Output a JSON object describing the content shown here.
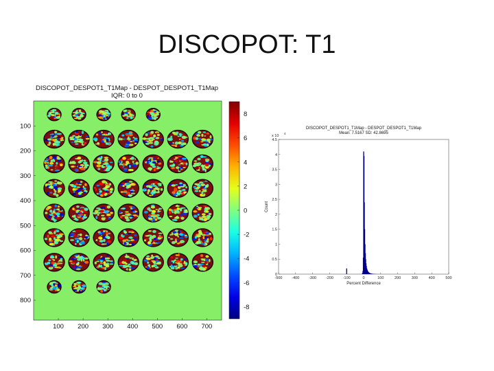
{
  "slide": {
    "title": "DISCOPOT: T1"
  },
  "chart_data": [
    {
      "type": "heatmap",
      "title": "DISCOPOT_DESPOT1_T1Map - DESPOT_DESPOT1_T1Map",
      "subtitle": "IQR: 0 to 0",
      "xlabel": "",
      "ylabel": "",
      "x_ticks": [
        "100",
        "200",
        "300",
        "400",
        "500",
        "600",
        "700"
      ],
      "y_ticks": [
        "100",
        "200",
        "300",
        "400",
        "500",
        "600",
        "700",
        "800"
      ],
      "xlim": [
        0,
        760
      ],
      "ylim": [
        880,
        0
      ],
      "colorbar": {
        "ticks": [
          "8",
          "6",
          "4",
          "2",
          "0",
          "-2",
          "-4",
          "-6",
          "-8"
        ],
        "range": [
          -9,
          9
        ],
        "colormap": "jet"
      },
      "background_color": "#87ee68",
      "montage": {
        "rows": 8,
        "cols": 7,
        "slice_counts_per_row": [
          5,
          7,
          7,
          7,
          7,
          7,
          7,
          3
        ]
      }
    },
    {
      "type": "bar",
      "title": "DISCOPOT_DESPOT1_T1Map - DESPOT_DESPOT1_T1Map",
      "subtitle": "Mean: 7.5167 SD: 42.8695",
      "xlabel": "Percent Difference",
      "ylabel": "Count",
      "y_multiplier": "x 10",
      "y_multiplier_exp": "4",
      "xlim": [
        -500,
        500
      ],
      "ylim": [
        0,
        45000
      ],
      "x_ticks": [
        "-500",
        "-400",
        "-300",
        "-200",
        "-100",
        "0",
        "100",
        "200",
        "300",
        "400",
        "500"
      ],
      "y_ticks": [
        "0",
        "0.5",
        "1",
        "1.5",
        "2",
        "2.5",
        "3",
        "3.5",
        "4",
        "4.5"
      ],
      "bar_color": "#00008b",
      "bins": [
        {
          "x": -100,
          "count": 1900
        },
        {
          "x": -8,
          "count": 150
        },
        {
          "x": -6,
          "count": 450
        },
        {
          "x": -4,
          "count": 1100
        },
        {
          "x": -2,
          "count": 5500
        },
        {
          "x": 0,
          "count": 41000
        },
        {
          "x": 2,
          "count": 39500
        },
        {
          "x": 4,
          "count": 24000
        },
        {
          "x": 6,
          "count": 15000
        },
        {
          "x": 8,
          "count": 10000
        },
        {
          "x": 10,
          "count": 7000
        },
        {
          "x": 12,
          "count": 5000
        },
        {
          "x": 14,
          "count": 3600
        },
        {
          "x": 16,
          "count": 2700
        },
        {
          "x": 18,
          "count": 2000
        },
        {
          "x": 20,
          "count": 1600
        },
        {
          "x": 22,
          "count": 1300
        },
        {
          "x": 24,
          "count": 1000
        },
        {
          "x": 26,
          "count": 850
        },
        {
          "x": 28,
          "count": 700
        },
        {
          "x": 30,
          "count": 600
        },
        {
          "x": 32,
          "count": 500
        },
        {
          "x": 34,
          "count": 420
        },
        {
          "x": 36,
          "count": 350
        },
        {
          "x": 38,
          "count": 300
        },
        {
          "x": 40,
          "count": 250
        },
        {
          "x": 44,
          "count": 200
        },
        {
          "x": 48,
          "count": 160
        },
        {
          "x": 52,
          "count": 130
        },
        {
          "x": 56,
          "count": 100
        },
        {
          "x": 60,
          "count": 80
        },
        {
          "x": 66,
          "count": 60
        },
        {
          "x": 72,
          "count": 40
        },
        {
          "x": 80,
          "count": 25
        },
        {
          "x": 90,
          "count": 15
        },
        {
          "x": 100,
          "count": 8
        }
      ]
    }
  ]
}
